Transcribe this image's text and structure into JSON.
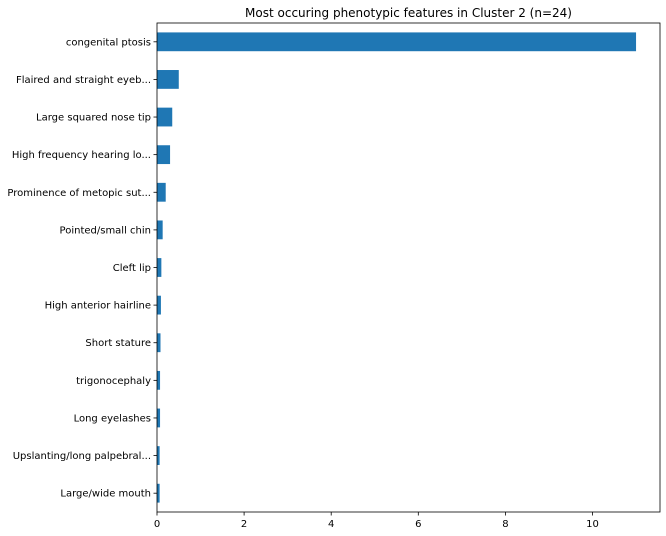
{
  "chart_data": {
    "type": "bar",
    "orientation": "horizontal",
    "title": "Most occuring phenotypic features in Cluster 2 (n=24)",
    "xlabel": "",
    "ylabel": "",
    "categories": [
      "congenital ptosis",
      "Flaired and straight eyeb...",
      "Large squared nose tip",
      "High frequency hearing lo...",
      "Prominence of metopic sut...",
      "Pointed/small chin",
      "Cleft lip",
      "High anterior hairline",
      "Short stature",
      "trigonocephaly",
      "Long eyelashes",
      "Upslanting/long palpebral...",
      "Large/wide mouth"
    ],
    "values": [
      11.0,
      0.5,
      0.35,
      0.3,
      0.2,
      0.13,
      0.1,
      0.09,
      0.08,
      0.07,
      0.07,
      0.06,
      0.06
    ],
    "xlim": [
      0,
      11.55
    ],
    "xticks": [
      0,
      2,
      4,
      6,
      8,
      10
    ],
    "xtick_labels": [
      "0",
      "2",
      "4",
      "6",
      "8",
      "10"
    ],
    "bar_color": "#1f77b4",
    "grid": false,
    "legend": "none"
  }
}
